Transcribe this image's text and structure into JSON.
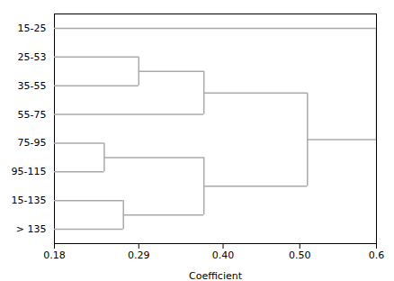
{
  "chart_data": {
    "type": "dendrogram",
    "categories": [
      "15-25",
      "25-53",
      "35-55",
      "55-75",
      "75-95",
      "95-115",
      "15-135",
      "> 135"
    ],
    "tree": {
      "x": 0.6,
      "children": [
        "15-25",
        {
          "x": 0.51,
          "children": [
            {
              "x": 0.375,
              "children": [
                {
                  "x": 0.29,
                  "children": [
                    "25-53",
                    "35-55"
                  ]
                },
                "55-75"
              ]
            },
            {
              "x": 0.375,
              "children": [
                {
                  "x": 0.245,
                  "children": [
                    "75-95",
                    "95-115"
                  ]
                },
                {
                  "x": 0.27,
                  "children": [
                    "15-135",
                    "> 135"
                  ]
                }
              ]
            }
          ]
        }
      ]
    },
    "xlim": [
      0.18,
      0.6
    ],
    "xticks": [
      0.18,
      0.29,
      {
        "value": 0.4,
        "label": "0.40"
      },
      {
        "value": 0.5,
        "label": "0.50"
      },
      0.6
    ],
    "xlabel": "Coefficient",
    "color": "#aaaaaa",
    "grid": false
  }
}
